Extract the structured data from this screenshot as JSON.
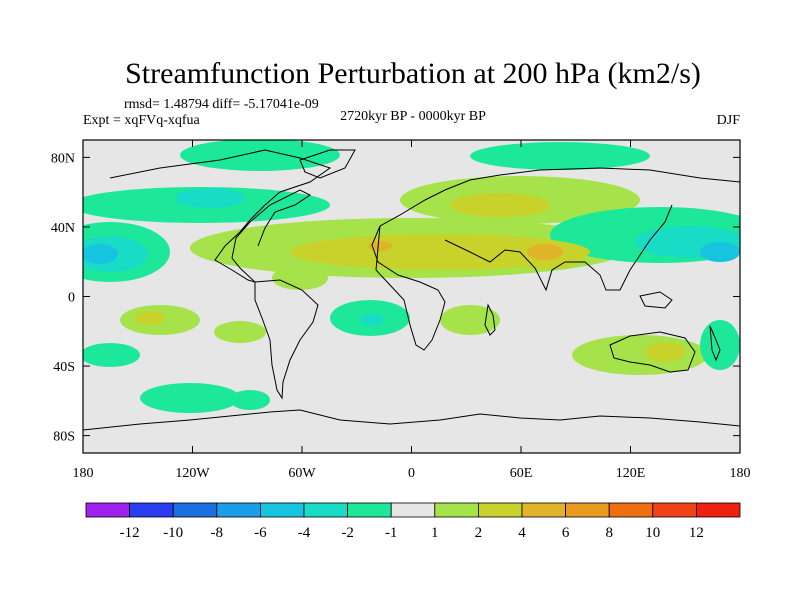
{
  "chart_data": {
    "type": "heatmap",
    "title": "Streamfunction Perturbation at 200 hPa (km2/s)",
    "stats": "rmsd= 1.48794 diff= -5.17041e-09",
    "expt": "Expt = xqFVq-xqfua",
    "period": "2720kyr BP - 0000kyr BP",
    "season": "DJF",
    "x_ticks": [
      "180",
      "120W",
      "60W",
      "0",
      "60E",
      "120E",
      "180"
    ],
    "x_tick_values": [
      -180,
      -120,
      -60,
      0,
      60,
      120,
      180
    ],
    "y_ticks": [
      "80N",
      "40N",
      "0",
      "40S",
      "80S"
    ],
    "y_tick_values": [
      80,
      40,
      0,
      -40,
      -80
    ],
    "xlim": [
      -180,
      180
    ],
    "ylim": [
      -90,
      90
    ],
    "colorbar": {
      "labels": [
        "-12",
        "-10",
        "-8",
        "-6",
        "-4",
        "-2",
        "-1",
        "1",
        "2",
        "4",
        "6",
        "8",
        "10",
        "12"
      ],
      "colors": [
        "#a020f0",
        "#2a3ef0",
        "#1a70e0",
        "#1b9ee8",
        "#17c4e0",
        "#18dcc6",
        "#1de89a",
        "#e6e6e6",
        "#a6e34a",
        "#c8d22a",
        "#e0b42a",
        "#e89a1e",
        "#ee6e10",
        "#f04418",
        "#ee2010"
      ]
    }
  }
}
